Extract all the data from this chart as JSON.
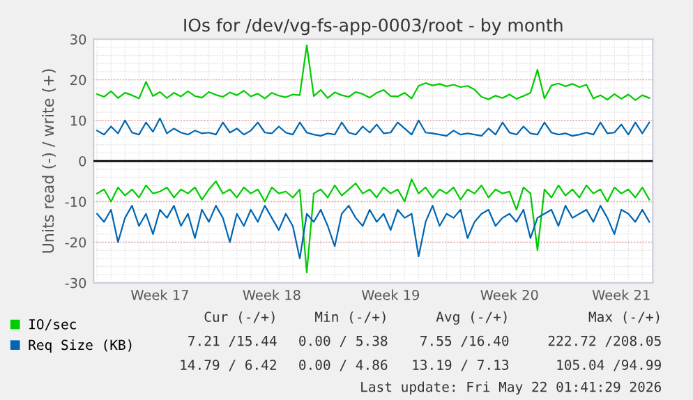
{
  "chart_data": {
    "type": "line",
    "title": "IOs for /dev/vg-fs-app-0003/root - by month",
    "ylabel": "Units read (-) / write (+)",
    "categories": [
      null,
      null,
      null,
      null,
      null,
      null,
      null,
      null,
      null,
      "Week 17",
      null,
      null,
      null,
      null,
      null,
      null,
      null,
      null,
      null,
      null,
      null,
      null,
      null,
      null,
      null,
      "Week 18",
      null,
      null,
      null,
      null,
      null,
      null,
      null,
      null,
      null,
      null,
      null,
      null,
      null,
      null,
      null,
      null,
      "Week 19",
      null,
      null,
      null,
      null,
      null,
      null,
      null,
      null,
      null,
      null,
      null,
      null,
      null,
      null,
      null,
      null,
      "Week 20",
      null,
      null,
      null,
      null,
      null,
      null,
      null,
      null,
      null,
      null,
      null,
      null,
      null,
      null,
      null,
      "Week 21",
      null,
      null,
      null,
      null
    ],
    "series": [
      {
        "name": "IO/sec",
        "color": "#00cc00",
        "values": [
          16.5,
          15.8,
          17.2,
          15.5,
          16.8,
          16.2,
          15.4,
          19.5,
          16,
          17,
          15.5,
          16.8,
          15.9,
          17.2,
          16,
          15.6,
          17,
          16.3,
          15.8,
          16.9,
          16.2,
          17.3,
          15.9,
          16.6,
          15.4,
          16.8,
          16.1,
          15.7,
          16.4,
          16.2,
          28.5,
          16,
          17.5,
          15.5,
          16.9,
          16.2,
          15.8,
          17,
          16.5,
          15.6,
          16.8,
          17.5,
          16,
          15.9,
          16.8,
          15.4,
          18.5,
          19.2,
          18.6,
          19,
          18.4,
          18.8,
          18.2,
          18.5,
          17.6,
          15.8,
          15.2,
          16.1,
          15.5,
          16.4,
          15.3,
          16,
          16.8,
          22.5,
          15.4,
          18.6,
          19.1,
          18.4,
          19,
          18.2,
          18.8,
          15.4,
          16.2,
          15.1,
          16.5,
          15.3,
          16.4,
          15,
          16.2,
          15.5
        ]
      },
      {
        "color": "#00cc00",
        "values": [
          -8,
          -7,
          -10,
          -6.5,
          -8.5,
          -7,
          -9,
          -6,
          -8,
          -7.5,
          -6.5,
          -9,
          -7,
          -8,
          -6.5,
          -9.5,
          -7,
          -5,
          -8,
          -7,
          -9,
          -6.5,
          -8,
          -7,
          -10,
          -6.5,
          -8,
          -7.5,
          -9,
          -7,
          -27.5,
          -8,
          -7,
          -9,
          -6,
          -8.5,
          -7,
          -5.5,
          -8,
          -7,
          -9,
          -6.5,
          -8,
          -7,
          -10,
          -4.5,
          -8,
          -6.5,
          -9,
          -7,
          -8,
          -6.5,
          -9.5,
          -7,
          -8,
          -6,
          -9,
          -7,
          -8,
          -7.5,
          -12,
          -6.5,
          -8,
          -22,
          -7,
          -9,
          -6,
          -8.5,
          -7,
          -9,
          -6,
          -8,
          -7,
          -10,
          -6.5,
          -8,
          -7,
          -9,
          -6.5,
          -9.5
        ]
      },
      {
        "name": "Req Size (KB)",
        "color": "#0066b3",
        "values": [
          7.5,
          6.5,
          8.5,
          6.8,
          10,
          7,
          6.5,
          9.5,
          7.2,
          10.5,
          6.8,
          8,
          7,
          6.5,
          7.5,
          6.8,
          7,
          6.5,
          9.5,
          7,
          8,
          6.5,
          7.5,
          9.5,
          7,
          6.8,
          8.5,
          7,
          6.5,
          9.5,
          7,
          6.5,
          6.2,
          6.8,
          6.5,
          9.5,
          7,
          6.5,
          8.5,
          7,
          9,
          6.8,
          7,
          9.5,
          8,
          6.5,
          10,
          7,
          6.8,
          6.5,
          6.2,
          7.5,
          6.5,
          6.8,
          6.5,
          6.2,
          8,
          6.5,
          9.5,
          7,
          6.5,
          8.5,
          6.8,
          6.5,
          9.5,
          7,
          6.5,
          6.8,
          6.2,
          6.5,
          7,
          6.5,
          9.5,
          6.8,
          7,
          9,
          6.5,
          9.5,
          6.8,
          9.5
        ]
      },
      {
        "color": "#0066b3",
        "values": [
          -13,
          -15,
          -12,
          -20,
          -14,
          -11,
          -16,
          -13,
          -18,
          -12,
          -14,
          -11,
          -16,
          -13,
          -19,
          -12,
          -15,
          -11,
          -14,
          -20,
          -13,
          -16,
          -12,
          -15,
          -11,
          -14,
          -17,
          -13,
          -16,
          -24,
          -13,
          -15,
          -12,
          -16,
          -21,
          -13,
          -11,
          -14,
          -16,
          -12,
          -15,
          -13,
          -17,
          -12,
          -14,
          -13,
          -23.5,
          -15,
          -11,
          -16,
          -13,
          -14,
          -12,
          -19,
          -15,
          -13,
          -12,
          -16,
          -14,
          -13,
          -15,
          -12,
          -19,
          -14,
          -13,
          -12,
          -16,
          -11,
          -14,
          -13,
          -12,
          -15,
          -11,
          -14,
          -18,
          -12,
          -13,
          -15,
          -12,
          -15
        ]
      }
    ],
    "ylim": [
      -30,
      30
    ],
    "yticks": [
      -30,
      -20,
      -10,
      0,
      10,
      20,
      30
    ],
    "ref_lines": [
      {
        "axis": "y",
        "value": 0,
        "color": "#000000"
      }
    ],
    "grid": true,
    "legend": "bottom left",
    "marker": "none",
    "line_style": "solid",
    "annotations": [
      "Cur (-/+)",
      "Min (-/+)",
      "Avg (-/+)",
      "Max (-/+)",
      "7.21 /15.44",
      "0.00 / 5.38",
      "7.55 /16.40",
      "222.72 /208.05",
      "14.79 / 6.42",
      "0.00 / 4.86",
      "13.19 / 7.13",
      "105.04 /94.99",
      "Last update: Fri May 22 01:41:29 2026"
    ]
  }
}
